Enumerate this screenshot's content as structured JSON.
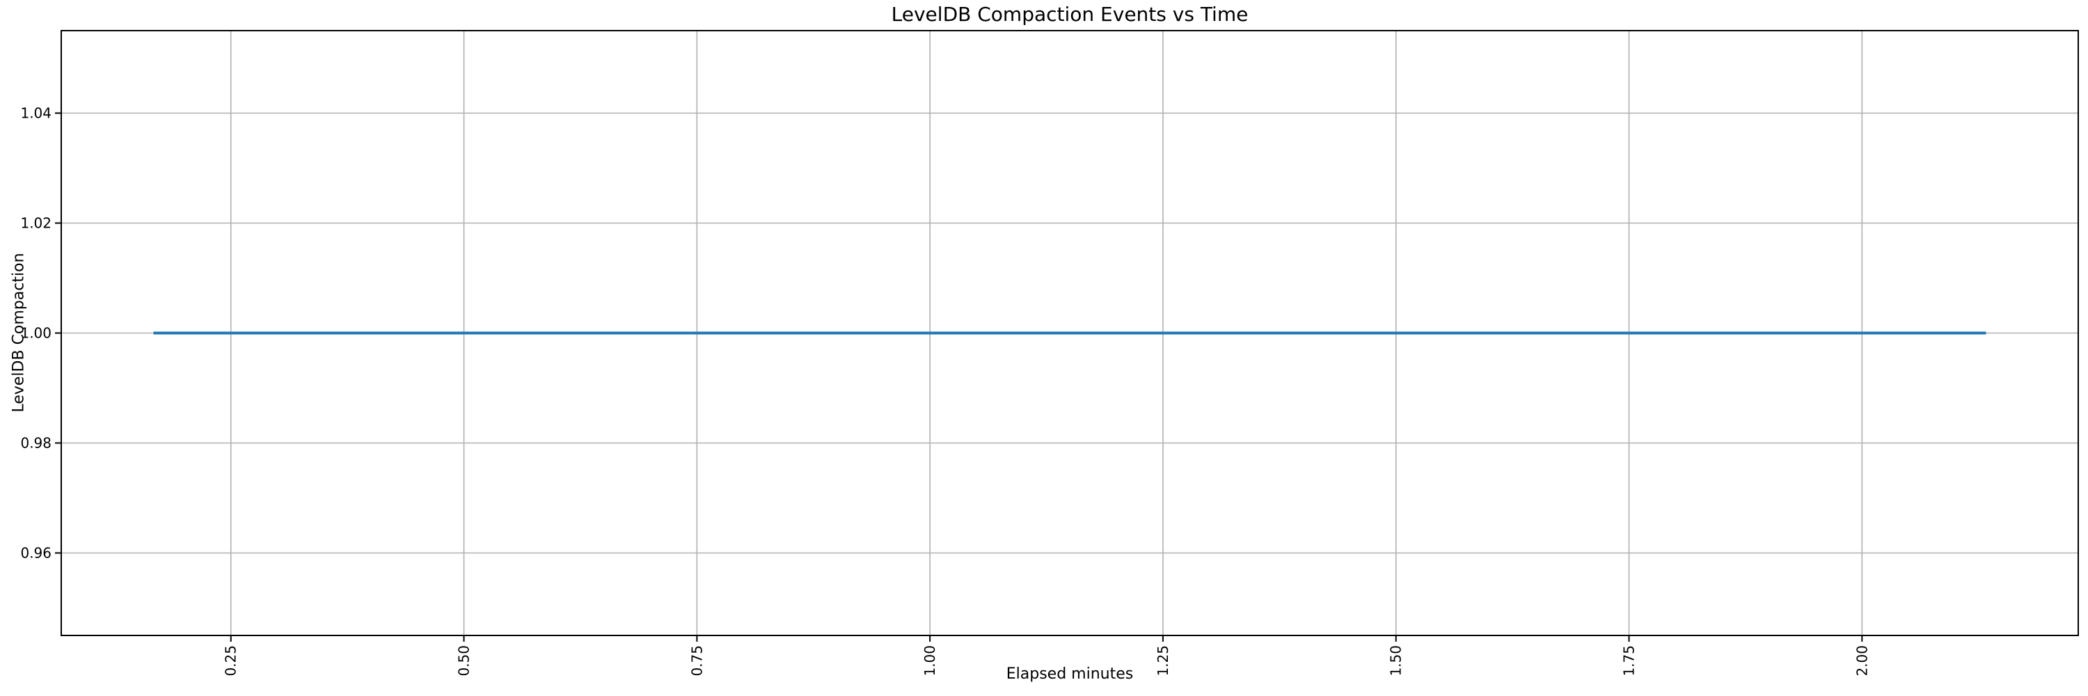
{
  "page": {
    "background": "#ffffff"
  },
  "chart_data": {
    "type": "line",
    "title": "LevelDB Compaction Events vs Time",
    "xlabel": "Elapsed minutes",
    "ylabel": "LevelDB Compaction",
    "xlim": [
      0.068,
      2.232
    ],
    "ylim": [
      0.945,
      1.055
    ],
    "x_ticks": {
      "values": [
        0.25,
        0.5,
        0.75,
        1.0,
        1.25,
        1.5,
        1.75,
        2.0
      ],
      "labels": [
        "0.25",
        "0.50",
        "0.75",
        "1.00",
        "1.25",
        "1.50",
        "1.75",
        "2.00"
      ],
      "rotation_deg": 90
    },
    "y_ticks": {
      "values": [
        0.96,
        0.98,
        1.0,
        1.02,
        1.04
      ],
      "labels": [
        "0.96",
        "0.98",
        "1.00",
        "1.02",
        "1.04"
      ]
    },
    "grid": true,
    "legend": "none",
    "series": [
      {
        "name": "LevelDB Compaction",
        "color": "#1f77b4",
        "x": [
          0.167,
          2.133
        ],
        "y": [
          1.0,
          1.0
        ],
        "shape": "constant horizontal line at y = 1.00 spanning x ~0.17 to ~2.13 elapsed minutes"
      }
    ],
    "colors": {
      "line": "#1f77b4",
      "grid": "#b0b0b0",
      "spine": "#000000",
      "tick": "#000000",
      "text": "#000000",
      "background": "#ffffff"
    }
  }
}
